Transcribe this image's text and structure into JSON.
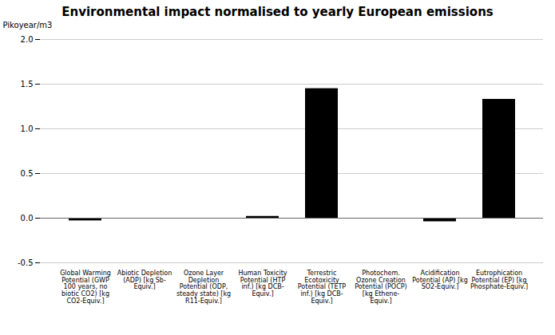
{
  "chart_data": {
    "type": "bar",
    "title": "Environmental impact normalised to yearly European emissions",
    "ylabel": "Pikoyear/m3",
    "categories": [
      "Global Warming\nPotential (GWP\n100 years, no\nbiotic CO2) [kg\nCO2-Equiv.]",
      "Abiotic Depletion\n(ADP) [kg Sb-\nEquiv.]",
      "Ozone Layer\nDepletion\nPotential (ODP,\nsteady state) [kg\nR11-Equiv.]",
      "Human Toxicity\nPotential (HTP\ninf.) [kg DCB-\nEquiv.]",
      "Terrestric\nEcotoxicity\nPotential (TETP\ninf.) [kg DCB-\nEquiv.]",
      "Photochem.\nOzone Creation\nPotential (POCP)\n[kg Ethene-\nEquiv.]",
      "Acidification\nPotential (AP) [kg\nSO2-Equiv.]",
      "Eutrophication\nPotential (EP) [kg\nPhosphate-Equiv.]"
    ],
    "values": [
      -0.03,
      0.0,
      0.0,
      0.02,
      1.45,
      0.0,
      -0.04,
      1.33
    ],
    "ylim": [
      -0.5,
      2.0
    ],
    "yticks": [
      -0.5,
      {
        "value": 0.0,
        "label": "0.0"
      },
      0.5,
      {
        "value": 1.0,
        "label": "1.0"
      },
      1.5,
      {
        "value": 2.0,
        "label": "2.0"
      }
    ],
    "grid": true
  }
}
